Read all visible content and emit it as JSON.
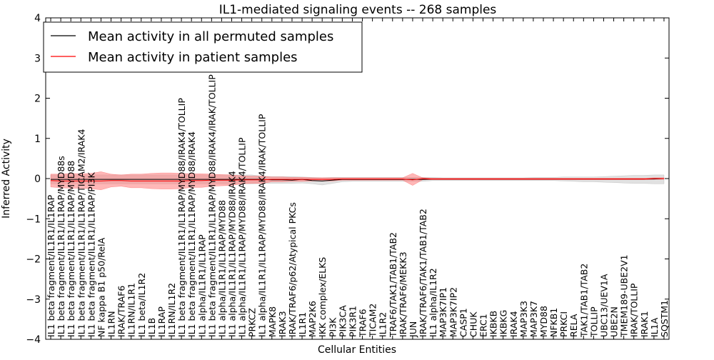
{
  "chart_data": {
    "type": "line",
    "title": "IL1-mediated signaling events -- 268 samples",
    "xlabel": "Cellular Entities",
    "ylabel": "Inferred Activity",
    "ylim": [
      -4,
      4
    ],
    "yticks": [
      -4,
      -3,
      -2,
      -1,
      0,
      1,
      2,
      3,
      4
    ],
    "legend_position": "top-left",
    "colors": {
      "permuted_line": "#000000",
      "permuted_band": "#c8c8c8",
      "patient_line": "#ff0000",
      "patient_band": "#ff7070"
    },
    "categories": [
      "IL1 beta fragment/IL1R1/IL1RAP",
      "IL1 beta fragment/IL1R1/IL1RAP/MYD88s",
      "IL1 beta fragment/IL1R1/IL1RAP/MYD88",
      "IL1 beta fragment/IL1R1/IL1RAP/TICAM2/IRAK4",
      "IL1 beta fragment/IL1R1/IL1RAP/PI3K",
      "NF kappa B1 p50/RelA",
      "IL1RN",
      "IRAK/TRAF6",
      "IL1RN/IL1R1",
      "IL1 beta/IL1R2",
      "IL1B",
      "IL1RAP",
      "IL1RN/IL1R2",
      "IL1 beta fragment/IL1R1/IL1RAP/MYD88/IRAK4/TOLLIP",
      "IL1 beta fragment/IL1R1/IL1RAP/MYD88/IRAK4",
      "IL1 alpha/IL1R1/IL1RAP",
      "IL1 beta fragment/IL1R1/IL1RAP/MYD88/IRAK4/IRAK/TOLLIP",
      "IL1 alpha/IL1R1/IL1RAP/MYD88",
      "IL1 alpha/IL1R1/IL1RAP/MYD88/IRAK4",
      "IL1 alpha/IL1R1/IL1RAP/MYD88/IRAK4/TOLLIP",
      "PRKCZ",
      "IL1 alpha/IL1R1/IL1RAP/MYD88/IRAK4/IRAK/TOLLIP",
      "MAPK8",
      "IRAK3",
      "IRAK/TRAF6/p62/Atypical PKCs",
      "IL1R1",
      "MAP2K6",
      "IKK complex/ELKS",
      "PI3K",
      "PIK3CA",
      "PIK3R1",
      "TRAF6",
      "TICAM2",
      "IL1R2",
      "TRAF6/TAK1/TAB1/TAB2",
      "IRAK/TRAF6/MEKK3",
      "JUN",
      "IRAK/TRAF6/TAK1/TAB1/TAB2",
      "IL1 alpha/IL1R2",
      "MAP3K7IP1",
      "MAP3K7IP2",
      "CASP1",
      "CHUK",
      "ERC1",
      "IKBKB",
      "IKBKG",
      "IRAK4",
      "MAP3K3",
      "MAP3K7",
      "MYD88",
      "NFKB1",
      "PRKCI",
      "RELA",
      "TAK1/TAB1/TAB2",
      "TOLLIP",
      "UBC13/UEV1A",
      "UBE2N",
      "TMEM189-UBE2V1",
      "IRAK/TOLLIP",
      "IRAK1",
      "IL1A",
      "SQSTM1"
    ],
    "series": [
      {
        "name": "Mean activity in all permuted samples",
        "values": [
          -0.02,
          -0.02,
          -0.02,
          -0.02,
          -0.02,
          -0.02,
          -0.02,
          -0.02,
          -0.02,
          -0.02,
          -0.02,
          -0.02,
          -0.02,
          -0.02,
          -0.02,
          -0.02,
          -0.02,
          -0.02,
          -0.02,
          -0.02,
          -0.02,
          -0.02,
          -0.03,
          -0.03,
          -0.04,
          -0.02,
          -0.05,
          -0.06,
          -0.04,
          -0.02,
          -0.02,
          -0.02,
          -0.02,
          -0.02,
          -0.02,
          -0.02,
          -0.02,
          -0.02,
          -0.01,
          -0.01,
          -0.01,
          -0.01,
          -0.01,
          -0.01,
          -0.01,
          -0.01,
          -0.01,
          -0.01,
          -0.01,
          -0.01,
          -0.01,
          -0.01,
          -0.01,
          -0.01,
          -0.01,
          -0.01,
          -0.01,
          -0.01,
          -0.01,
          -0.01,
          -0.01,
          0.0
        ],
        "upper": [
          0.09,
          0.09,
          0.09,
          0.09,
          0.09,
          0.09,
          0.09,
          0.09,
          0.09,
          0.09,
          0.09,
          0.09,
          0.09,
          0.09,
          0.09,
          0.09,
          0.09,
          0.09,
          0.09,
          0.09,
          0.09,
          0.06,
          0.05,
          0.05,
          0.05,
          0.04,
          0.03,
          0.02,
          0.03,
          0.03,
          0.03,
          0.03,
          0.03,
          0.03,
          0.03,
          0.03,
          0.03,
          0.03,
          0.03,
          0.02,
          0.02,
          0.02,
          0.02,
          0.02,
          0.02,
          0.02,
          0.02,
          0.02,
          0.03,
          0.03,
          0.03,
          0.04,
          0.04,
          0.04,
          0.04,
          0.05,
          0.06,
          0.07,
          0.08,
          0.08,
          0.09,
          0.09
        ],
        "lower": [
          -0.13,
          -0.13,
          -0.13,
          -0.13,
          -0.13,
          -0.13,
          -0.13,
          -0.13,
          -0.13,
          -0.13,
          -0.13,
          -0.13,
          -0.13,
          -0.13,
          -0.13,
          -0.13,
          -0.13,
          -0.13,
          -0.13,
          -0.13,
          -0.13,
          -0.12,
          -0.12,
          -0.12,
          -0.12,
          -0.11,
          -0.13,
          -0.16,
          -0.12,
          -0.08,
          -0.07,
          -0.07,
          -0.07,
          -0.07,
          -0.07,
          -0.07,
          -0.07,
          -0.07,
          -0.05,
          -0.05,
          -0.05,
          -0.05,
          -0.05,
          -0.05,
          -0.05,
          -0.05,
          -0.05,
          -0.05,
          -0.05,
          -0.05,
          -0.05,
          -0.06,
          -0.07,
          -0.08,
          -0.08,
          -0.09,
          -0.1,
          -0.11,
          -0.12,
          -0.12,
          -0.13,
          -0.13
        ]
      },
      {
        "name": "Mean activity in patient samples",
        "values": [
          -0.05,
          -0.06,
          -0.06,
          -0.06,
          -0.06,
          -0.06,
          -0.05,
          -0.05,
          -0.06,
          -0.06,
          -0.06,
          -0.06,
          -0.06,
          -0.06,
          -0.05,
          -0.05,
          -0.04,
          -0.04,
          -0.04,
          -0.03,
          -0.03,
          -0.03,
          -0.02,
          -0.02,
          -0.02,
          -0.02,
          -0.02,
          -0.02,
          -0.02,
          -0.01,
          -0.01,
          -0.01,
          -0.01,
          -0.01,
          -0.01,
          -0.01,
          -0.03,
          0.0,
          -0.01,
          -0.01,
          -0.01,
          -0.01,
          -0.01,
          -0.01,
          -0.01,
          -0.01,
          -0.01,
          -0.01,
          -0.01,
          -0.01,
          -0.01,
          -0.01,
          -0.01,
          -0.01,
          -0.01,
          -0.01,
          -0.01,
          -0.01,
          -0.01,
          -0.01,
          0.0,
          0.0
        ],
        "upper": [
          0.11,
          0.11,
          0.13,
          0.12,
          0.13,
          0.17,
          0.11,
          0.09,
          0.11,
          0.11,
          0.13,
          0.14,
          0.14,
          0.13,
          0.12,
          0.12,
          0.11,
          0.1,
          0.09,
          0.07,
          0.06,
          0.06,
          0.04,
          0.04,
          0.03,
          0.03,
          0.02,
          0.02,
          0.02,
          0.02,
          0.02,
          0.02,
          0.02,
          0.02,
          0.02,
          0.02,
          0.13,
          0.02,
          0.01,
          0.01,
          0.01,
          0.01,
          0.01,
          0.01,
          0.01,
          0.01,
          0.01,
          0.01,
          0.01,
          0.01,
          0.01,
          0.01,
          0.01,
          0.01,
          0.01,
          0.01,
          0.01,
          0.01,
          0.01,
          0.01,
          0.02,
          0.02
        ],
        "lower": [
          -0.21,
          -0.23,
          -0.24,
          -0.24,
          -0.25,
          -0.28,
          -0.21,
          -0.19,
          -0.23,
          -0.23,
          -0.25,
          -0.26,
          -0.26,
          -0.25,
          -0.22,
          -0.22,
          -0.19,
          -0.18,
          -0.17,
          -0.13,
          -0.12,
          -0.12,
          -0.08,
          -0.08,
          -0.07,
          -0.07,
          -0.06,
          -0.06,
          -0.06,
          -0.04,
          -0.04,
          -0.04,
          -0.04,
          -0.04,
          -0.04,
          -0.04,
          -0.17,
          -0.03,
          -0.03,
          -0.03,
          -0.03,
          -0.03,
          -0.03,
          -0.03,
          -0.03,
          -0.03,
          -0.03,
          -0.03,
          -0.03,
          -0.03,
          -0.03,
          -0.03,
          -0.03,
          -0.03,
          -0.03,
          -0.03,
          -0.03,
          -0.03,
          -0.03,
          -0.03,
          -0.02,
          -0.02
        ]
      }
    ]
  }
}
